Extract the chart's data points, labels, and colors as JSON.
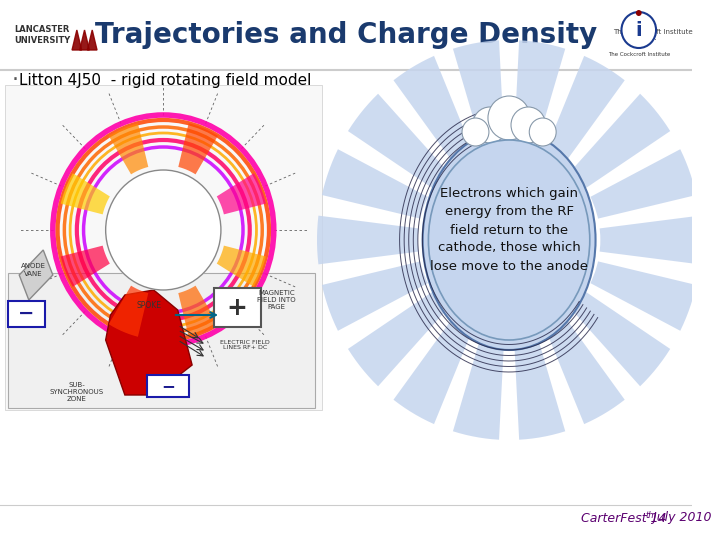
{
  "title": "Trajectories and Charge Density",
  "subtitle": "Litton 4J50  - rigid rotating field model",
  "annotation_text": "Electrons which gain\nenergy from the RF\nfield return to the\ncathode, those which\nlose move to the anode",
  "label_anode_vane": "ANODE\nVANE",
  "label_spoke": "SPOKE",
  "label_magnetic": "MAGNETIC\nFIELD INTO\nPAGE",
  "label_electric": "ELECTRIC FIELD\nLINES RF+ DC",
  "label_subsync": "SUB-\nSYNCHRONOUS\nZONE",
  "label_carterfest": "CarterFest 14",
  "label_carterfest2": "th",
  "label_carterfest3": " July 2010",
  "bg_color": "#ffffff",
  "header_bg": "#f0f0f0",
  "title_color": "#1a3a6e",
  "subtitle_color": "#000000",
  "lancaster_red": "#8b0000",
  "cockcroft_blue": "#1a3a8f",
  "spoke_blue": "#aabbdd",
  "annotation_bg": "#b8c8e8",
  "spoke_bg": "#c5d5ee",
  "ellipse_bg": "#c5d5ee",
  "carterfest_color": "#5b0070",
  "left_panel_bg": "#ffffff",
  "diagram_bg": "#e8e8e8",
  "red_vane": "#cc0000",
  "minus_color": "#1a1a8f"
}
